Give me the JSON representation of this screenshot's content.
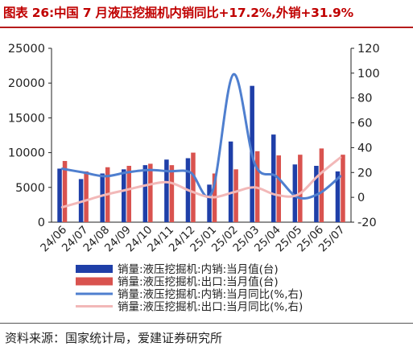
{
  "title": "图表 26:中国 7 月液压挖掘机内销同比+17.2%,外销+31.9%",
  "source": "资料来源：国家统计局，爱建证券研究所",
  "colors": {
    "domestic_sales": "#1f3fa8",
    "export_sales": "#d9534f",
    "domestic_yoy": "#4f7fcf",
    "export_yoy": "#f2b8b8",
    "title": "#c00000"
  },
  "chart_data": {
    "type": "bar",
    "title": "",
    "categories": [
      "24/06",
      "24/07",
      "24/08",
      "24/09",
      "24/10",
      "24/11",
      "24/12",
      "25/01",
      "25/02",
      "25/03",
      "25/04",
      "25/05",
      "25/06",
      "25/07"
    ],
    "left_axis": {
      "min": 0,
      "max": 25000,
      "ticks": [
        "0",
        "5000",
        "10000",
        "15000",
        "20000",
        "25000"
      ]
    },
    "right_axis": {
      "min": -20,
      "max": 120,
      "ticks": [
        "-20",
        "0",
        "20",
        "40",
        "60",
        "80",
        "100",
        "120"
      ]
    },
    "series": [
      {
        "name": "销量:液压挖掘机:内销:当月值(台)",
        "type": "bar",
        "axis": "left",
        "values": [
          7700,
          6200,
          7000,
          7600,
          8200,
          9000,
          9200,
          5400,
          11600,
          19600,
          12600,
          8300,
          8100,
          7300
        ]
      },
      {
        "name": "销量:液压挖掘机:出口:当月值(台)",
        "type": "bar",
        "axis": "left",
        "values": [
          8800,
          7300,
          7900,
          8100,
          8400,
          8200,
          10000,
          7000,
          7600,
          10200,
          9600,
          9700,
          10600,
          9700
        ]
      },
      {
        "name": "销量:液压挖掘机:内销:当月同比(%,右)",
        "type": "line",
        "axis": "right",
        "values": [
          23,
          20,
          17,
          20,
          22,
          21,
          20,
          4,
          99,
          27,
          17,
          0,
          3,
          17
        ]
      },
      {
        "name": "销量:液压挖掘机:出口:当月同比(%,右)",
        "type": "line",
        "axis": "right",
        "values": [
          -8,
          -3,
          2,
          6,
          10,
          12,
          5,
          0,
          4,
          8,
          2,
          2,
          18,
          32
        ]
      }
    ],
    "grid": false,
    "legend_position": "bottom"
  }
}
